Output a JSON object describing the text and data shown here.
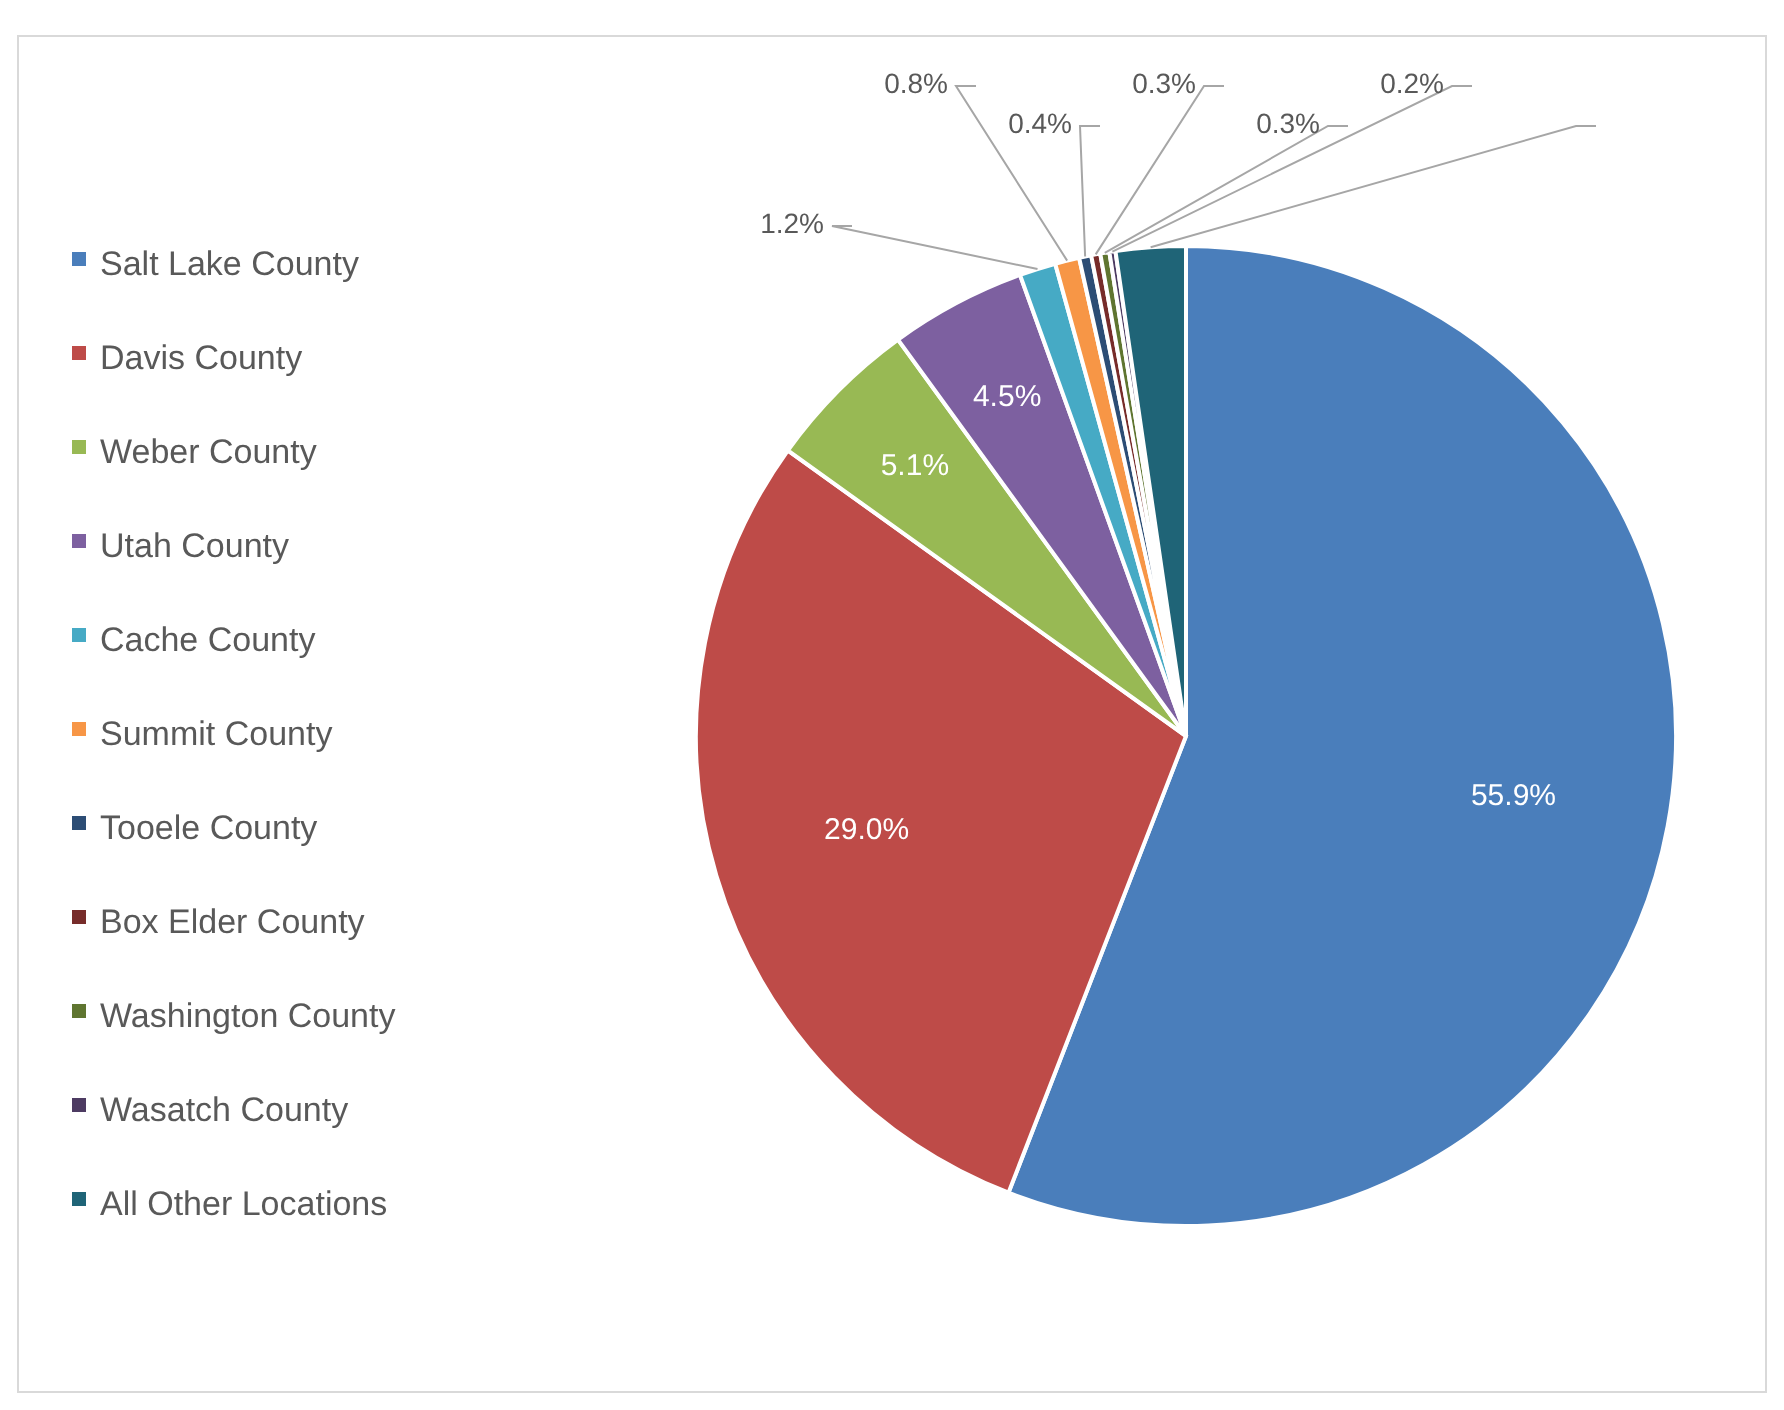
{
  "chart_data": {
    "type": "pie",
    "categories": [
      "Salt Lake County",
      "Davis County",
      "Weber County",
      "Utah County",
      "Cache County",
      "Summit County",
      "Tooele County",
      "Box Elder County",
      "Washington County",
      "Wasatch County",
      "All Other Locations"
    ],
    "values": [
      55.9,
      29.0,
      5.1,
      4.5,
      1.2,
      0.8,
      0.4,
      0.3,
      0.3,
      0.2,
      2.3
    ],
    "colors": [
      "#4a7ebb",
      "#be4b48",
      "#98b954",
      "#7d60a0",
      "#46aac5",
      "#f79646",
      "#2c4d75",
      "#772c2a",
      "#5f7530",
      "#4d3b62",
      "#1f6477"
    ],
    "value_labels": [
      "55.9%",
      "29.0%",
      "5.1%",
      "4.5%",
      "1.2%",
      "0.8%",
      "0.4%",
      "0.3%",
      "0.3%",
      "0.2%",
      null
    ],
    "legend": "left"
  }
}
